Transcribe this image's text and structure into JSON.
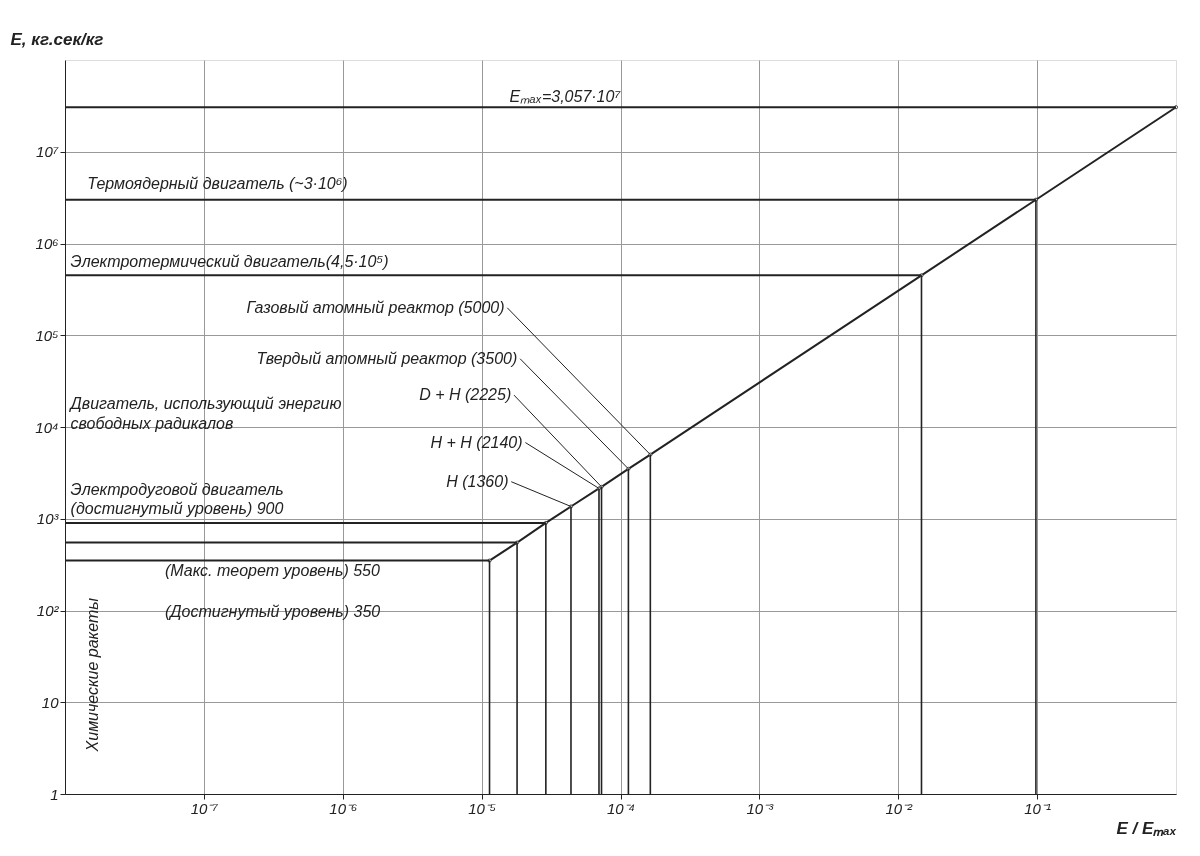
{
  "chart_data": {
    "type": "line",
    "xlabel": "E / Eₘₐₓ",
    "ylabel": "E, кг.сек/кг",
    "series": [
      {
        "color": "#222222",
        "x": [
          1.14e-05,
          1.8e-05,
          2.9e-05,
          4.4e-05,
          7e-05,
          7.3e-05,
          0.000114,
          0.000164,
          0.0147,
          0.098,
          1
        ],
        "values": [
          350,
          550,
          900,
          1360,
          2140,
          2225,
          3500,
          5000,
          450000,
          3000000,
          30570000
        ]
      }
    ],
    "xlim": [
      1e-08,
      1
    ],
    "ylim": [
      1,
      100000000.0
    ],
    "xticks": [
      {
        "value": 1e-07,
        "label": "10⁻⁷"
      },
      {
        "value": 1e-06,
        "label": "10⁻⁶"
      },
      {
        "value": 1e-05,
        "label": "10⁻⁵"
      },
      {
        "value": 0.0001,
        "label": "10⁻⁴"
      },
      {
        "value": 0.001,
        "label": "10⁻³"
      },
      {
        "value": 0.01,
        "label": "10⁻²"
      },
      {
        "value": 0.1,
        "label": "10⁻¹"
      }
    ],
    "yticks": [
      1,
      10,
      {
        "value": 100,
        "label": "10²"
      },
      {
        "value": 1000,
        "label": "10³"
      },
      {
        "value": 10000,
        "label": "10⁴"
      },
      {
        "value": 100000,
        "label": "10⁵"
      },
      {
        "value": 1000000,
        "label": "10⁶"
      },
      {
        "value": 10000000,
        "label": "10⁷"
      }
    ],
    "log": "xy",
    "grid": true,
    "marker": "circle",
    "line_style": "solid",
    "ref_lines": [
      {
        "axis": "y",
        "value": 30570000
      },
      {
        "axis": "y",
        "value": 3000000,
        "label": "Термоядерный двигатель (~3·10⁶)"
      },
      {
        "axis": "y",
        "value": 450000,
        "label": "Электротермический двигатель(4,5·10⁵)"
      },
      {
        "axis": "y",
        "value": 900,
        "label": "Электродуговой двигатель (достигнутый уровень) 900"
      },
      {
        "axis": "y",
        "value": 550,
        "label": "(Макс. теорет уровень) 550"
      },
      {
        "axis": "y",
        "value": 350,
        "label": "(Достигнутый уровень) 350"
      },
      {
        "axis": "x",
        "value": 1.14e-05
      },
      {
        "axis": "x",
        "value": 1.8e-05
      },
      {
        "axis": "x",
        "value": 2.9e-05
      },
      {
        "axis": "x",
        "value": 4.4e-05
      },
      {
        "axis": "x",
        "value": 7e-05
      },
      {
        "axis": "x",
        "value": 7.3e-05
      },
      {
        "axis": "x",
        "value": 0.000114
      },
      {
        "axis": "x",
        "value": 0.000164
      },
      {
        "axis": "x",
        "value": 0.0147
      },
      {
        "axis": "x",
        "value": 0.098
      }
    ],
    "annotations": [
      {
        "text": "Газовый атомный реактор (5000)",
        "x": 0.000164,
        "y": 5000
      },
      {
        "text": "Твердый атомный реактор (3500)",
        "x": 0.000114,
        "y": 3500
      },
      {
        "text": "D + H (2225)",
        "x": 7.3e-05,
        "y": 2225
      },
      {
        "text": "H + H (2140)",
        "x": 7e-05,
        "y": 2140
      },
      {
        "text": "H (1360)",
        "x": 4.4e-05,
        "y": 1360
      },
      "Eₘₐₓ=3,057·10⁷",
      "Двигатель, использующий энергию свободных радикалов",
      "Химические ракеты"
    ]
  }
}
